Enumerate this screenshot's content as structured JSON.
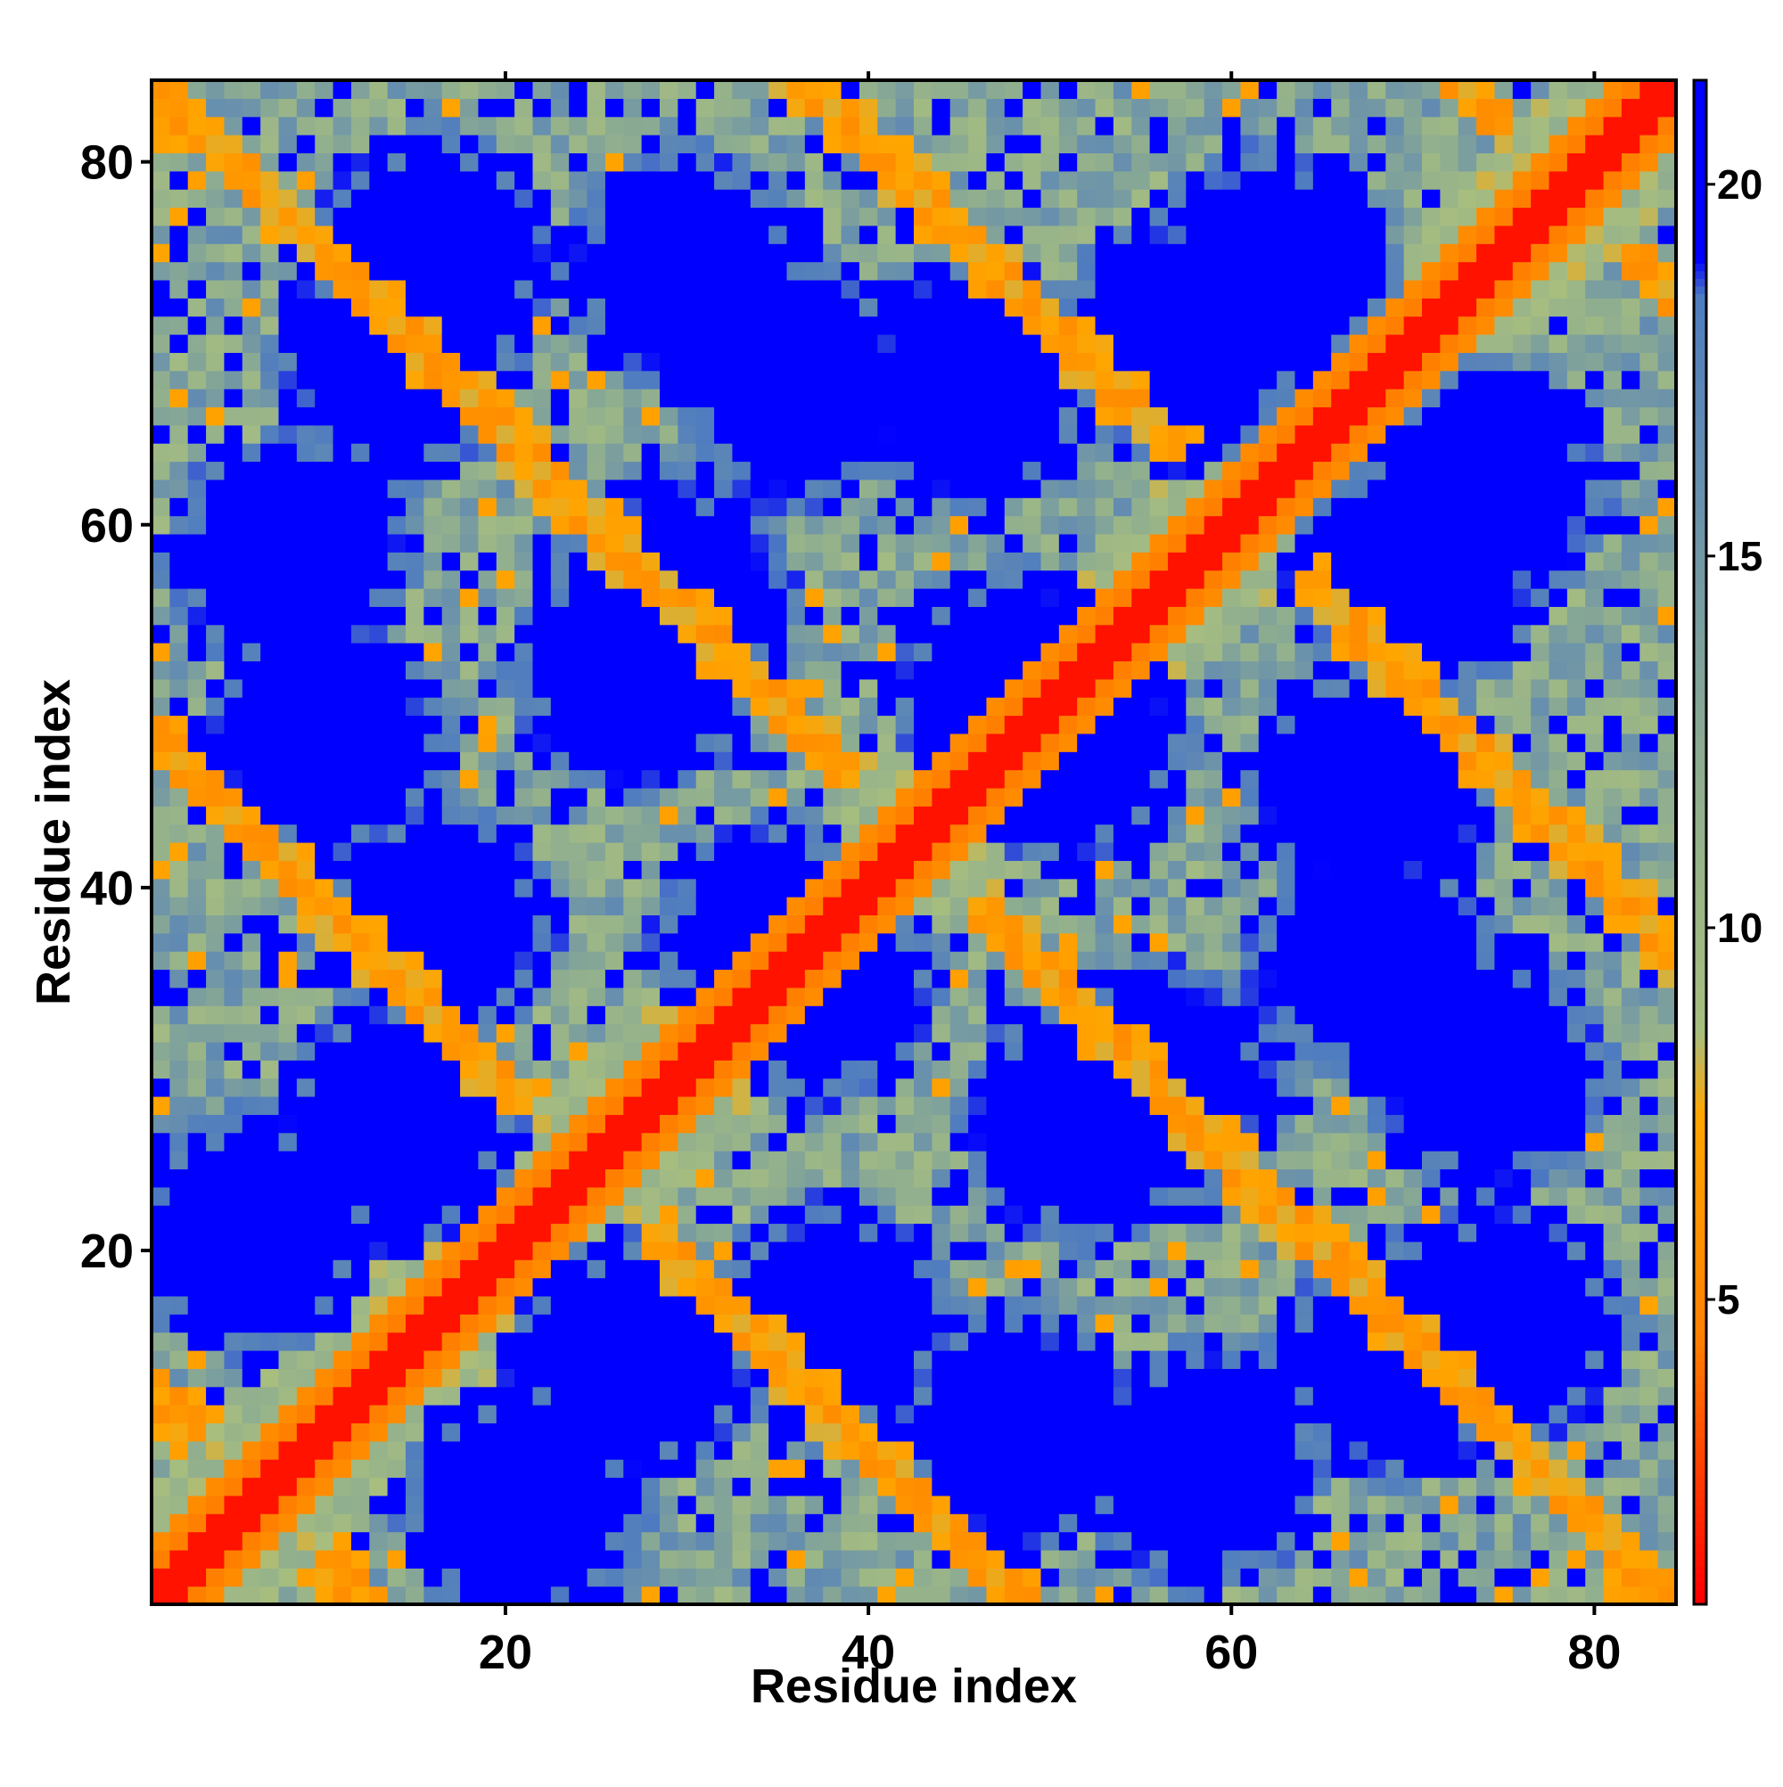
{
  "chart_data": {
    "type": "heatmap",
    "title": "",
    "xlabel": "Residue index",
    "ylabel": "Residue index",
    "n": 84,
    "xlim": [
      0.5,
      84.5
    ],
    "ylim": [
      0.5,
      84.5
    ],
    "x_ticks": [
      20,
      40,
      60,
      80
    ],
    "y_ticks": [
      20,
      40,
      60,
      80
    ],
    "colorbar": {
      "range": [
        0.9,
        21.4
      ],
      "ticks": [
        5,
        10,
        15,
        20
      ],
      "stops": [
        {
          "value": 1.0,
          "color": "#ff0000"
        },
        {
          "value": 4.5,
          "color": "#ff8000"
        },
        {
          "value": 7.5,
          "color": "#ffa500"
        },
        {
          "value": 8.6,
          "color": "#a8be7f"
        },
        {
          "value": 12.0,
          "color": "#8fae8f"
        },
        {
          "value": 18.5,
          "color": "#4f7cc0"
        },
        {
          "value": 19.0,
          "color": "#0000ff"
        },
        {
          "value": 21.4,
          "color": "#0000ff"
        }
      ]
    },
    "matrix_description": "Residue-residue distance map (symmetric, 84x84). Red diagonal (distance ~1-4), orange anti-diagonal bands, green/teal intermediate regions, blue for distances >= ~19.",
    "matrix_rule": {
      "diagonal_value": 1.5,
      "anti_diagonal_centers": [
        85,
        121,
        49,
        157,
        13
      ],
      "orange_band_value": 5.5,
      "blob_centers": [
        [
          16,
          75
        ],
        [
          36,
          68
        ],
        [
          57,
          70
        ],
        [
          74,
          62
        ],
        [
          8,
          58
        ],
        [
          27,
          52
        ],
        [
          48,
          51
        ],
        [
          68,
          46
        ],
        [
          16,
          38
        ],
        [
          35,
          37
        ],
        [
          56,
          29
        ],
        [
          74,
          30
        ],
        [
          6,
          21
        ],
        [
          27,
          14
        ],
        [
          48,
          10
        ],
        [
          69,
          14
        ]
      ],
      "far_value": 20.5
    }
  }
}
